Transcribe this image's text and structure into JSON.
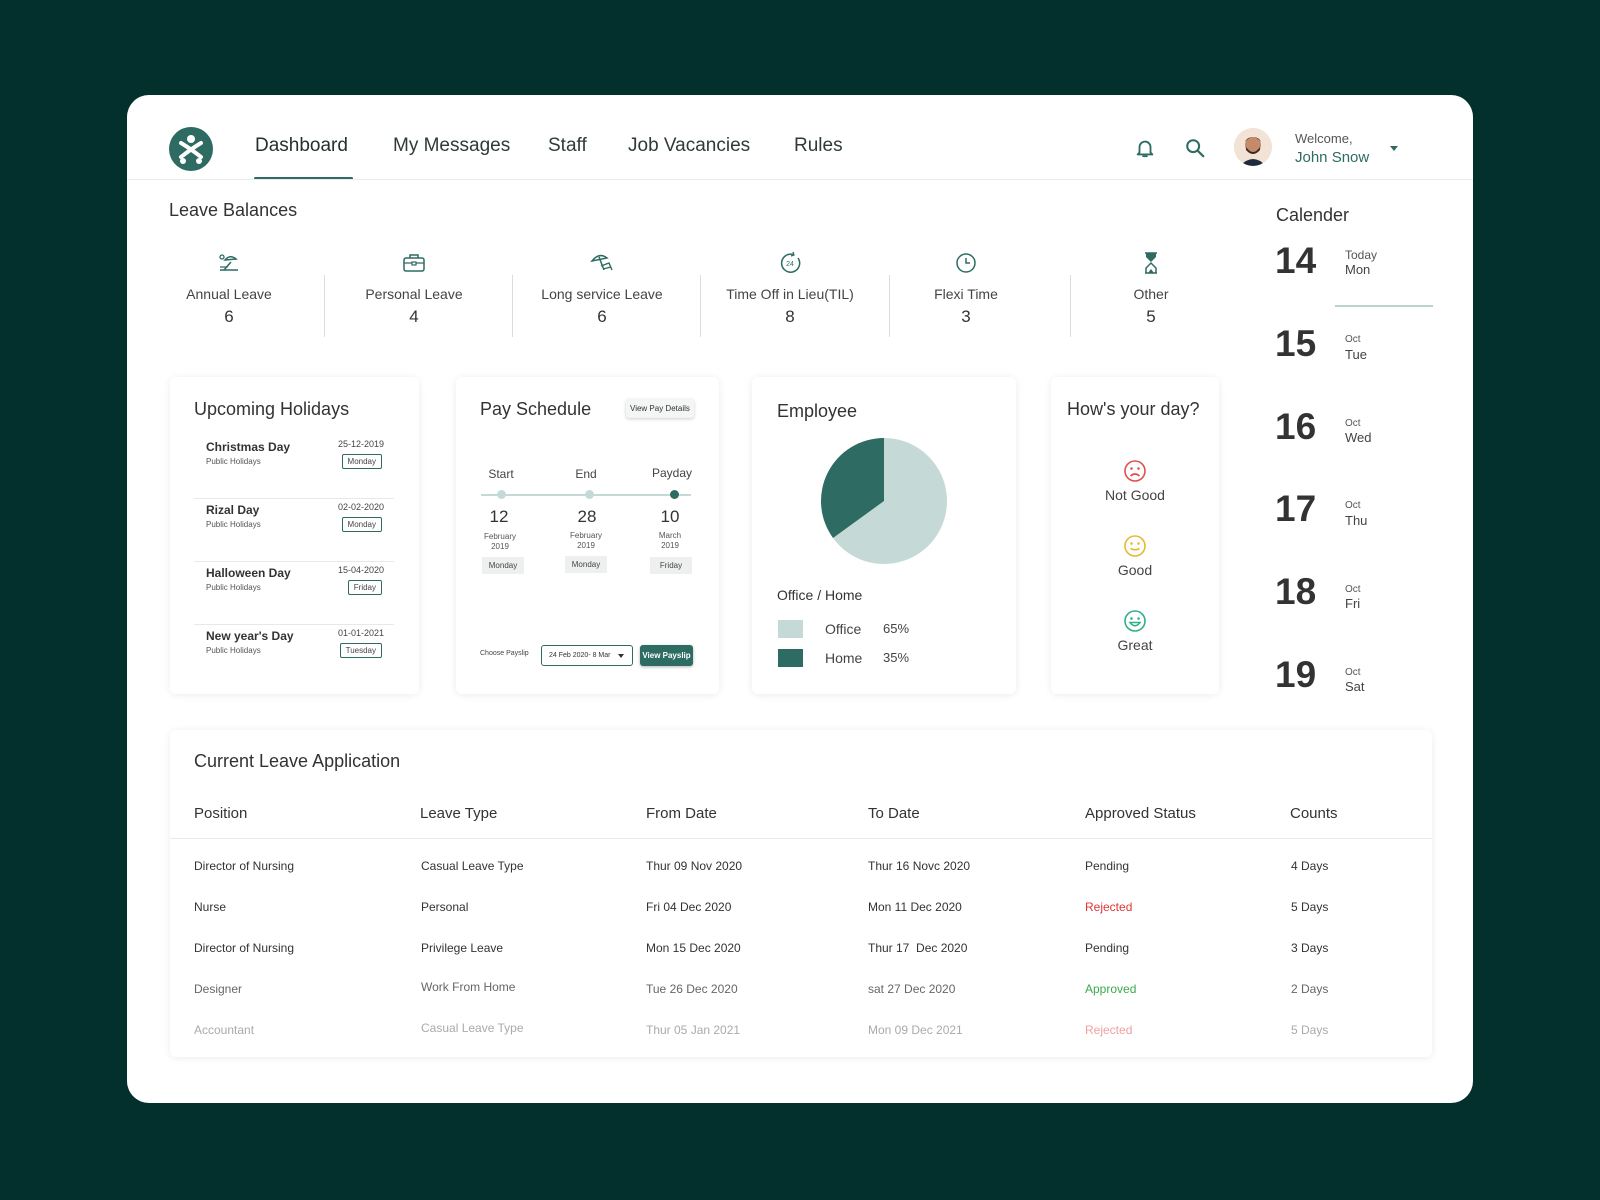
{
  "nav": {
    "items": [
      "Dashboard",
      "My Messages",
      "Staff",
      "Job Vacancies",
      "Rules"
    ]
  },
  "user": {
    "welcome": "Welcome,",
    "name": "John Snow"
  },
  "leave_balances": {
    "title": "Leave Balances",
    "items": [
      {
        "label": "Annual Leave",
        "value": "6",
        "icon": "beach-icon"
      },
      {
        "label": "Personal Leave",
        "value": "4",
        "icon": "briefcase-icon"
      },
      {
        "label": "Long service Leave",
        "value": "6",
        "icon": "umbrella-chair-icon"
      },
      {
        "label": "Time Off in Lieu(TIL)",
        "value": "8",
        "icon": "clock-24-icon"
      },
      {
        "label": "Flexi Time",
        "value": "3",
        "icon": "clock-icon"
      },
      {
        "label": "Other",
        "value": "5",
        "icon": "hourglass-icon"
      }
    ]
  },
  "holidays": {
    "title": "Upcoming Holidays",
    "items": [
      {
        "name": "Christmas Day",
        "sub": "Public Holidays",
        "date": "25-12-2019",
        "day": "Monday"
      },
      {
        "name": "Rizal Day",
        "sub": "Public Holidays",
        "date": "02-02-2020",
        "day": "Monday"
      },
      {
        "name": "Halloween Day",
        "sub": "Public Holidays",
        "date": "15-04-2020",
        "day": "Friday"
      },
      {
        "name": "New year's Day",
        "sub": "Public Holidays",
        "date": "01-01-2021",
        "day": "Tuesday"
      }
    ]
  },
  "pay": {
    "title": "Pay Schedule",
    "details_button": "View Pay Details",
    "points": [
      {
        "label": "Start",
        "num": "12",
        "month": "February",
        "year": "2019",
        "day": "Monday"
      },
      {
        "label": "End",
        "num": "28",
        "month": "February",
        "year": "2019",
        "day": "Monday"
      },
      {
        "label": "Payday",
        "num": "10",
        "month": "March",
        "year": "2019",
        "day": "Friday"
      }
    ],
    "choose_label": "Choose Payslip",
    "select_value": "24 Feb 2020- 8 Mar",
    "view_button": "View Payslip"
  },
  "employee": {
    "title": "Employee",
    "subtitle": "Office / Home",
    "legend": [
      {
        "name": "Office",
        "pct": "65%",
        "color": "#c5d9d6"
      },
      {
        "name": "Home",
        "pct": "35%",
        "color": "#2e6b62"
      }
    ]
  },
  "chart_data": {
    "type": "pie",
    "title": "",
    "series": [
      {
        "name": "Office",
        "value": 65,
        "color": "#c5d9d6"
      },
      {
        "name": "Home",
        "value": 35,
        "color": "#2e6b62"
      }
    ]
  },
  "mood": {
    "title": "How's your day?",
    "options": [
      {
        "label": "Not Good",
        "color": "#e05050",
        "icon": "sad-face-icon"
      },
      {
        "label": "Good",
        "color": "#e8b830",
        "icon": "neutral-face-icon"
      },
      {
        "label": "Great",
        "color": "#2fb08a",
        "icon": "happy-face-icon"
      }
    ]
  },
  "calendar": {
    "title": "Calender",
    "days": [
      {
        "num": "14",
        "small": "Today",
        "day": "Mon"
      },
      {
        "num": "15",
        "small": "Oct",
        "day": "Tue"
      },
      {
        "num": "16",
        "small": "Oct",
        "day": "Wed"
      },
      {
        "num": "17",
        "small": "Oct",
        "day": "Thu"
      },
      {
        "num": "18",
        "small": "Oct",
        "day": "Fri"
      },
      {
        "num": "19",
        "small": "Oct",
        "day": "Sat"
      }
    ]
  },
  "applications": {
    "title": "Current Leave Application",
    "columns": [
      "Position",
      "Leave Type",
      "From Date",
      "To Date",
      "Approved Status",
      "Counts"
    ],
    "rows": [
      {
        "position": "Director of Nursing",
        "type": "Casual Leave Type",
        "from": "Thur 09 Nov 2020",
        "to": "Thur 16 Novc 2020",
        "status": "Pending",
        "status_color": "#333333",
        "count": "4 Days"
      },
      {
        "position": "Nurse",
        "type": "Personal",
        "from": "Fri 04 Dec 2020",
        "to": "Mon 11 Dec 2020",
        "status": "Rejected",
        "status_color": "#e03535",
        "count": "5 Days"
      },
      {
        "position": "Director of Nursing",
        "type": "Privilege Leave",
        "from": "Mon 15 Dec 2020",
        "to": "Thur 17  Dec 2020",
        "status": "Pending",
        "status_color": "#333333",
        "count": "3 Days"
      },
      {
        "position": "Designer",
        "type": "Work From Home",
        "from": "Tue 26 Dec 2020",
        "to": "sat 27 Dec 2020",
        "status": "Approved",
        "status_color": "#3aaa4a",
        "count": "2 Days"
      },
      {
        "position": "Accountant",
        "type": "Casual Leave Type",
        "from": "Thur 05 Jan 2021",
        "to": "Mon 09 Dec 2021",
        "status": "Rejected",
        "status_color": "#f0a0a0",
        "count": "5 Days"
      }
    ]
  }
}
